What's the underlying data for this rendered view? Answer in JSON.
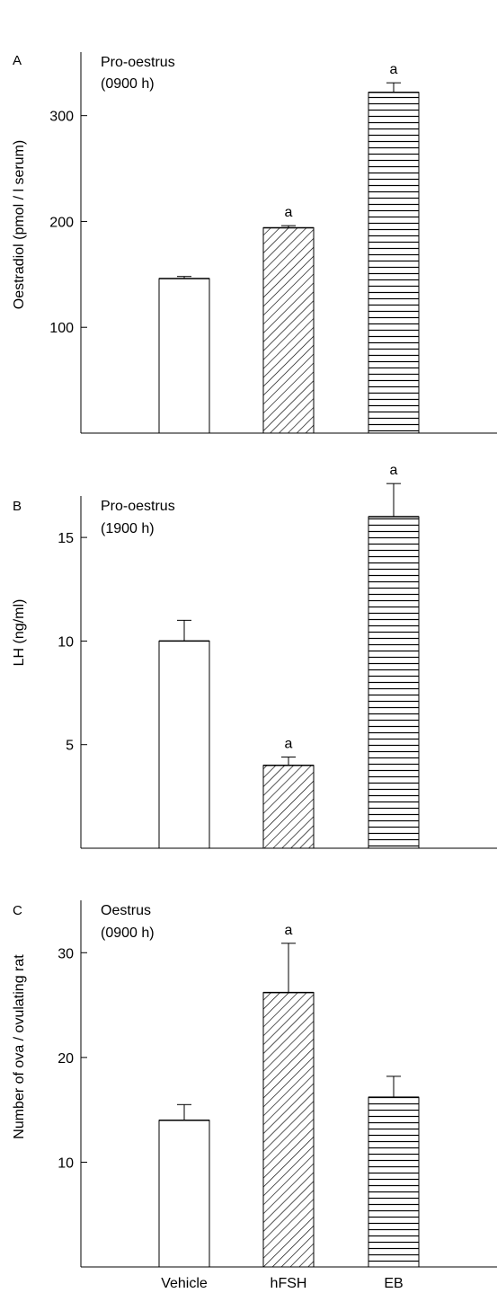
{
  "categories": [
    "Vehicle",
    "hFSH",
    "EB"
  ],
  "chart_data": [
    {
      "type": "bar",
      "panel_letter": "A",
      "annotation_lines": [
        "Pro-oestrus",
        "(0900 h)"
      ],
      "ylabel": "Oestradiol (pmol / l serum)",
      "ylim": [
        0,
        360
      ],
      "yticks": [
        100,
        200,
        300
      ],
      "categories": [
        "Vehicle",
        "hFSH",
        "EB"
      ],
      "values": [
        146,
        194,
        322
      ],
      "errors": [
        2,
        2,
        9
      ],
      "significance": [
        "",
        "a",
        "a"
      ],
      "patterns": [
        "none",
        "diagonal",
        "horizontal"
      ]
    },
    {
      "type": "bar",
      "panel_letter": "B",
      "annotation_lines": [
        "Pro-oestrus",
        "(1900 h)"
      ],
      "ylabel": "LH (ng/ml)",
      "ylim": [
        0,
        17
      ],
      "yticks": [
        5,
        10,
        15
      ],
      "categories": [
        "Vehicle",
        "hFSH",
        "EB"
      ],
      "values": [
        10,
        4,
        16
      ],
      "errors": [
        1,
        0.4,
        1.6
      ],
      "significance": [
        "",
        "a",
        "a"
      ],
      "patterns": [
        "none",
        "diagonal",
        "horizontal"
      ]
    },
    {
      "type": "bar",
      "panel_letter": "C",
      "annotation_lines": [
        "Oestrus",
        "(0900 h)"
      ],
      "ylabel": "Number of ova / ovulating rat",
      "ylim": [
        0,
        35
      ],
      "yticks": [
        10,
        20,
        30
      ],
      "categories": [
        "Vehicle",
        "hFSH",
        "EB"
      ],
      "values": [
        14,
        26.2,
        16.2
      ],
      "errors": [
        1.5,
        4.7,
        2
      ],
      "significance": [
        "",
        "a",
        ""
      ],
      "patterns": [
        "none",
        "diagonal",
        "horizontal"
      ]
    }
  ]
}
